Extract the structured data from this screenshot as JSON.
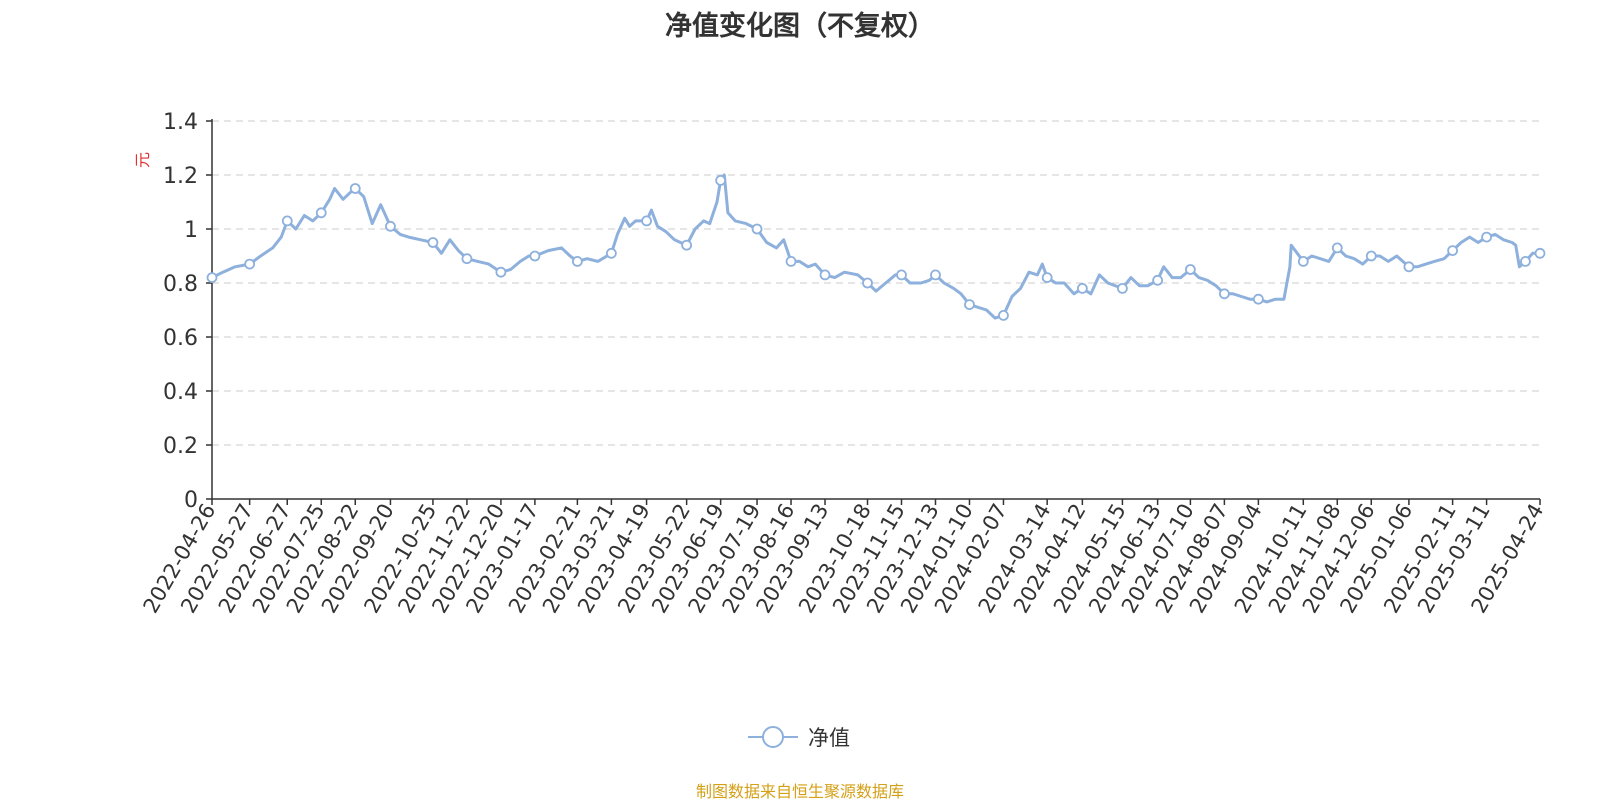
{
  "chart_data": {
    "type": "line",
    "title": "净值变化图（不复权）",
    "ylabel": "元",
    "xlabel": "",
    "ylim": [
      0,
      1.4
    ],
    "yticks": [
      "0",
      "0.2",
      "0.4",
      "0.6",
      "0.8",
      "1",
      "1.2",
      "1.4"
    ],
    "grid": true,
    "legend_position": "bottom-center",
    "x_tick_labels": [
      "2022-04-26",
      "2022-05-27",
      "2022-06-27",
      "2022-07-25",
      "2022-08-22",
      "2022-09-20",
      "2022-10-25",
      "2022-11-22",
      "2022-12-20",
      "2023-01-17",
      "2023-02-21",
      "2023-03-21",
      "2023-04-19",
      "2023-05-22",
      "2023-06-19",
      "2023-07-19",
      "2023-08-16",
      "2023-09-13",
      "2023-10-18",
      "2023-11-15",
      "2023-12-13",
      "2024-01-10",
      "2024-02-07",
      "2024-03-14",
      "2024-04-12",
      "2024-05-15",
      "2024-06-13",
      "2024-07-10",
      "2024-08-07",
      "2024-09-04",
      "2024-10-11",
      "2024-11-08",
      "2024-12-06",
      "2025-01-06",
      "2025-02-11",
      "2025-03-11",
      "2025-04-24"
    ],
    "series": [
      {
        "name": "净值",
        "color": "#8eb0dc",
        "points": [
          [
            "2022-04-26",
            0.82
          ],
          [
            "2022-05-05",
            0.84
          ],
          [
            "2022-05-15",
            0.86
          ],
          [
            "2022-05-27",
            0.87
          ],
          [
            "2022-06-05",
            0.9
          ],
          [
            "2022-06-15",
            0.93
          ],
          [
            "2022-06-22",
            0.97
          ],
          [
            "2022-06-27",
            1.03
          ],
          [
            "2022-07-04",
            1.0
          ],
          [
            "2022-07-11",
            1.05
          ],
          [
            "2022-07-18",
            1.03
          ],
          [
            "2022-07-25",
            1.06
          ],
          [
            "2022-08-01",
            1.11
          ],
          [
            "2022-08-05",
            1.15
          ],
          [
            "2022-08-12",
            1.11
          ],
          [
            "2022-08-19",
            1.14
          ],
          [
            "2022-08-22",
            1.15
          ],
          [
            "2022-08-29",
            1.12
          ],
          [
            "2022-09-05",
            1.02
          ],
          [
            "2022-09-12",
            1.09
          ],
          [
            "2022-09-20",
            1.01
          ],
          [
            "2022-09-28",
            0.98
          ],
          [
            "2022-10-05",
            0.97
          ],
          [
            "2022-10-15",
            0.96
          ],
          [
            "2022-10-25",
            0.95
          ],
          [
            "2022-11-01",
            0.91
          ],
          [
            "2022-11-08",
            0.96
          ],
          [
            "2022-11-15",
            0.92
          ],
          [
            "2022-11-22",
            0.89
          ],
          [
            "2022-12-01",
            0.88
          ],
          [
            "2022-12-10",
            0.87
          ],
          [
            "2022-12-20",
            0.84
          ],
          [
            "2022-12-28",
            0.85
          ],
          [
            "2023-01-05",
            0.88
          ],
          [
            "2023-01-12",
            0.9
          ],
          [
            "2023-01-17",
            0.9
          ],
          [
            "2023-01-28",
            0.92
          ],
          [
            "2023-02-08",
            0.93
          ],
          [
            "2023-02-15",
            0.9
          ],
          [
            "2023-02-21",
            0.88
          ],
          [
            "2023-03-01",
            0.89
          ],
          [
            "2023-03-10",
            0.88
          ],
          [
            "2023-03-21",
            0.91
          ],
          [
            "2023-03-26",
            0.98
          ],
          [
            "2023-04-01",
            1.04
          ],
          [
            "2023-04-05",
            1.01
          ],
          [
            "2023-04-10",
            1.03
          ],
          [
            "2023-04-19",
            1.03
          ],
          [
            "2023-04-23",
            1.07
          ],
          [
            "2023-04-28",
            1.01
          ],
          [
            "2023-05-05",
            0.99
          ],
          [
            "2023-05-12",
            0.96
          ],
          [
            "2023-05-22",
            0.94
          ],
          [
            "2023-05-29",
            1.0
          ],
          [
            "2023-06-05",
            1.03
          ],
          [
            "2023-06-10",
            1.02
          ],
          [
            "2023-06-16",
            1.1
          ],
          [
            "2023-06-19",
            1.18
          ],
          [
            "2023-06-22",
            1.2
          ],
          [
            "2023-06-25",
            1.06
          ],
          [
            "2023-07-01",
            1.03
          ],
          [
            "2023-07-10",
            1.02
          ],
          [
            "2023-07-19",
            1.0
          ],
          [
            "2023-07-27",
            0.95
          ],
          [
            "2023-08-04",
            0.93
          ],
          [
            "2023-08-10",
            0.96
          ],
          [
            "2023-08-16",
            0.88
          ],
          [
            "2023-08-23",
            0.88
          ],
          [
            "2023-08-30",
            0.86
          ],
          [
            "2023-09-05",
            0.87
          ],
          [
            "2023-09-13",
            0.83
          ],
          [
            "2023-09-21",
            0.82
          ],
          [
            "2023-09-29",
            0.84
          ],
          [
            "2023-10-10",
            0.83
          ],
          [
            "2023-10-18",
            0.8
          ],
          [
            "2023-10-25",
            0.77
          ],
          [
            "2023-11-02",
            0.8
          ],
          [
            "2023-11-10",
            0.83
          ],
          [
            "2023-11-15",
            0.83
          ],
          [
            "2023-11-22",
            0.8
          ],
          [
            "2023-12-01",
            0.8
          ],
          [
            "2023-12-08",
            0.81
          ],
          [
            "2023-12-13",
            0.83
          ],
          [
            "2023-12-20",
            0.8
          ],
          [
            "2023-12-28",
            0.78
          ],
          [
            "2024-01-03",
            0.76
          ],
          [
            "2024-01-10",
            0.72
          ],
          [
            "2024-01-17",
            0.71
          ],
          [
            "2024-01-24",
            0.7
          ],
          [
            "2024-01-31",
            0.67
          ],
          [
            "2024-02-07",
            0.68
          ],
          [
            "2024-02-14",
            0.75
          ],
          [
            "2024-02-21",
            0.78
          ],
          [
            "2024-02-28",
            0.84
          ],
          [
            "2024-03-06",
            0.83
          ],
          [
            "2024-03-10",
            0.87
          ],
          [
            "2024-03-14",
            0.82
          ],
          [
            "2024-03-21",
            0.8
          ],
          [
            "2024-03-28",
            0.8
          ],
          [
            "2024-04-05",
            0.76
          ],
          [
            "2024-04-12",
            0.78
          ],
          [
            "2024-04-19",
            0.76
          ],
          [
            "2024-04-26",
            0.83
          ],
          [
            "2024-05-03",
            0.8
          ],
          [
            "2024-05-15",
            0.78
          ],
          [
            "2024-05-22",
            0.82
          ],
          [
            "2024-05-29",
            0.79
          ],
          [
            "2024-06-05",
            0.79
          ],
          [
            "2024-06-13",
            0.81
          ],
          [
            "2024-06-18",
            0.86
          ],
          [
            "2024-06-25",
            0.82
          ],
          [
            "2024-07-02",
            0.82
          ],
          [
            "2024-07-10",
            0.85
          ],
          [
            "2024-07-17",
            0.82
          ],
          [
            "2024-07-24",
            0.81
          ],
          [
            "2024-07-31",
            0.79
          ],
          [
            "2024-08-07",
            0.76
          ],
          [
            "2024-08-14",
            0.76
          ],
          [
            "2024-08-21",
            0.75
          ],
          [
            "2024-08-28",
            0.74
          ],
          [
            "2024-09-04",
            0.74
          ],
          [
            "2024-09-11",
            0.73
          ],
          [
            "2024-09-18",
            0.74
          ],
          [
            "2024-09-25",
            0.74
          ],
          [
            "2024-09-30",
            0.86
          ],
          [
            "2024-10-01",
            0.94
          ],
          [
            "2024-10-11",
            0.88
          ],
          [
            "2024-10-18",
            0.9
          ],
          [
            "2024-10-25",
            0.89
          ],
          [
            "2024-11-01",
            0.88
          ],
          [
            "2024-11-08",
            0.93
          ],
          [
            "2024-11-15",
            0.9
          ],
          [
            "2024-11-22",
            0.89
          ],
          [
            "2024-11-29",
            0.87
          ],
          [
            "2024-12-06",
            0.9
          ],
          [
            "2024-12-13",
            0.9
          ],
          [
            "2024-12-20",
            0.88
          ],
          [
            "2024-12-27",
            0.9
          ],
          [
            "2025-01-06",
            0.86
          ],
          [
            "2025-01-13",
            0.86
          ],
          [
            "2025-01-20",
            0.87
          ],
          [
            "2025-01-27",
            0.88
          ],
          [
            "2025-02-04",
            0.89
          ],
          [
            "2025-02-11",
            0.92
          ],
          [
            "2025-02-18",
            0.95
          ],
          [
            "2025-02-25",
            0.97
          ],
          [
            "2025-03-04",
            0.95
          ],
          [
            "2025-03-11",
            0.97
          ],
          [
            "2025-03-18",
            0.98
          ],
          [
            "2025-03-25",
            0.96
          ],
          [
            "2025-04-01",
            0.95
          ],
          [
            "2025-04-04",
            0.94
          ],
          [
            "2025-04-07",
            0.86
          ],
          [
            "2025-04-12",
            0.88
          ],
          [
            "2025-04-18",
            0.91
          ],
          [
            "2025-04-24",
            0.91
          ]
        ],
        "marked_points": [
          [
            "2022-04-26",
            0.82
          ],
          [
            "2022-05-27",
            0.87
          ],
          [
            "2022-06-27",
            1.03
          ],
          [
            "2022-07-25",
            1.06
          ],
          [
            "2022-08-22",
            1.15
          ],
          [
            "2022-09-20",
            1.01
          ],
          [
            "2022-10-25",
            0.95
          ],
          [
            "2022-11-22",
            0.89
          ],
          [
            "2022-12-20",
            0.84
          ],
          [
            "2023-01-17",
            0.9
          ],
          [
            "2023-02-21",
            0.88
          ],
          [
            "2023-03-21",
            0.91
          ],
          [
            "2023-04-19",
            1.03
          ],
          [
            "2023-05-22",
            0.94
          ],
          [
            "2023-06-19",
            1.18
          ],
          [
            "2023-07-19",
            1.0
          ],
          [
            "2023-08-16",
            0.88
          ],
          [
            "2023-09-13",
            0.83
          ],
          [
            "2023-10-18",
            0.8
          ],
          [
            "2023-11-15",
            0.83
          ],
          [
            "2023-12-13",
            0.83
          ],
          [
            "2024-01-10",
            0.72
          ],
          [
            "2024-02-07",
            0.68
          ],
          [
            "2024-03-14",
            0.82
          ],
          [
            "2024-04-12",
            0.78
          ],
          [
            "2024-05-15",
            0.78
          ],
          [
            "2024-06-13",
            0.81
          ],
          [
            "2024-07-10",
            0.85
          ],
          [
            "2024-08-07",
            0.76
          ],
          [
            "2024-09-04",
            0.74
          ],
          [
            "2024-10-11",
            0.88
          ],
          [
            "2024-11-08",
            0.93
          ],
          [
            "2024-12-06",
            0.9
          ],
          [
            "2025-01-06",
            0.86
          ],
          [
            "2025-02-11",
            0.92
          ],
          [
            "2025-03-11",
            0.97
          ],
          [
            "2025-04-12",
            0.88
          ],
          [
            "2025-04-24",
            0.91
          ]
        ]
      }
    ]
  },
  "legend": {
    "label": "净值"
  },
  "source_note": "制图数据来自恒生聚源数据库"
}
